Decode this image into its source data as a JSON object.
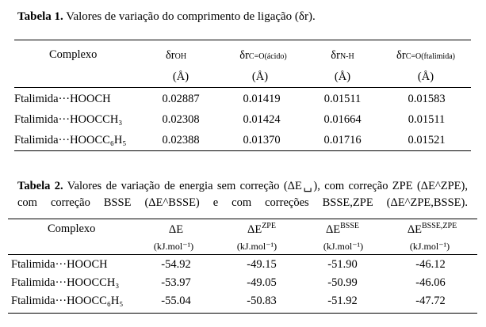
{
  "table1": {
    "caption_label": "Tabela 1.",
    "caption_text": "Valores de variação do comprimento de ligação (δr).",
    "header": {
      "col0": "Complexo",
      "col1_main": "δr",
      "col1_sub": "OH",
      "col2_main": "δr",
      "col2_sub": "C=O(ácido)",
      "col3_main": "δr",
      "col3_sub": "N-H",
      "col4_main": "δr",
      "col4_sub": "C=O(ftalimida)",
      "unit": "(Å)"
    },
    "rows": [
      {
        "name": "Ftalimida···HOOCH",
        "v1": "0.02887",
        "v2": "0.01419",
        "v3": "0.01511",
        "v4": "0.01583"
      },
      {
        "name": "Ftalimida···HOOCCH₃",
        "v1": "0.02308",
        "v2": "0.01424",
        "v3": "0.01664",
        "v4": "0.01511"
      },
      {
        "name": "Ftalimida···HOOCC₆H₅",
        "v1": "0.02388",
        "v2": "0.01370",
        "v3": "0.01716",
        "v4": "0.01521"
      }
    ]
  },
  "table2": {
    "caption_label": "Tabela 2.",
    "caption_text": "Valores de variação de energia sem correção (ΔE␣), com correção ZPE (ΔE^ZPE), com correção BSSE (ΔE^BSSE) e com correções BSSE,ZPE (ΔE^ZPE,BSSE).",
    "header": {
      "col0": "Complexo",
      "col1_main": "ΔE",
      "col1_sup": "",
      "col2_main": "ΔE",
      "col2_sup": "ZPE",
      "col3_main": "ΔE",
      "col3_sup": "BSSE",
      "col4_main": "ΔE",
      "col4_sup": "BSSE,ZPE",
      "unit": "(kJ.mol⁻¹)"
    },
    "rows": [
      {
        "name": "Ftalimida···HOOCH",
        "v1": "-54.92",
        "v2": "-49.15",
        "v3": "-51.90",
        "v4": "-46.12"
      },
      {
        "name": "Ftalimida···HOOCCH₃",
        "v1": "-53.97",
        "v2": "-49.05",
        "v3": "-50.99",
        "v4": "-46.06"
      },
      {
        "name": "Ftalimida···HOOCC₆H₅",
        "v1": "-55.04",
        "v2": "-50.83",
        "v3": "-51.92",
        "v4": "-47.72"
      }
    ]
  }
}
